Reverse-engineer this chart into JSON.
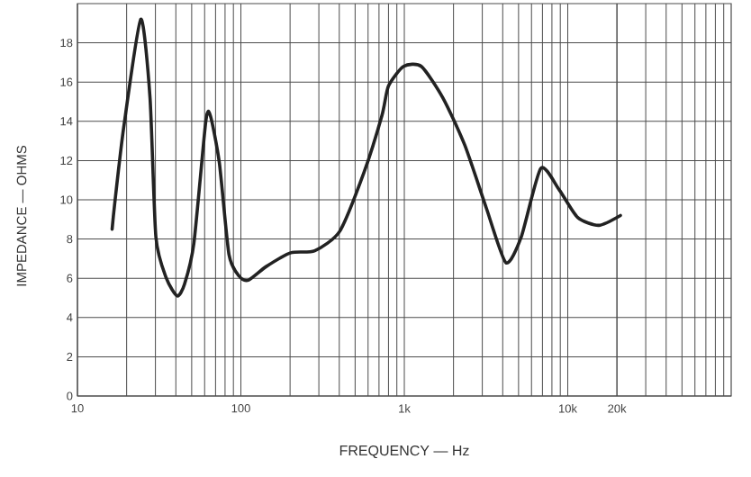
{
  "chart_data": {
    "type": "line",
    "xlabel": "FREQUENCY — Hz",
    "ylabel": "IMPEDANCE — OHMS",
    "log": "x",
    "grid": true,
    "marker": "none",
    "line_style": "solid",
    "xlim": [
      10,
      100000
    ],
    "ylim": [
      0,
      20
    ],
    "xticks": [
      10,
      100,
      {
        "value": 1000,
        "label": "1k"
      },
      {
        "value": 10000,
        "label": "10k"
      },
      {
        "value": 20000,
        "label": "20k"
      }
    ],
    "yticks": [
      0,
      2,
      4,
      6,
      8,
      10,
      12,
      14,
      16,
      18
    ],
    "series": [
      {
        "color": "#222222",
        "x": [
          16.3,
          16.9,
          19.2,
          24.4,
          27.8,
          30.2,
          35,
          40.8,
          45.2,
          51.6,
          61,
          65,
          73.8,
          84.6,
          97.8,
          111,
          143,
          202,
          283,
          403,
          567,
          730,
          800,
          990,
          1270,
          1720,
          2340,
          3170,
          4180,
          5190,
          6840,
          8880,
          11500,
          15500,
          21000
        ],
        "values": [
          8.5,
          9.8,
          13.7,
          19.2,
          15.2,
          8.1,
          6.0,
          5.1,
          5.7,
          7.8,
          14.0,
          14.3,
          11.9,
          7.2,
          6.1,
          5.9,
          6.6,
          7.3,
          7.4,
          8.4,
          11.4,
          14.3,
          15.8,
          16.8,
          16.8,
          15.2,
          12.8,
          9.6,
          6.8,
          8.1,
          11.6,
          10.5,
          9.1,
          8.7,
          9.2
        ]
      }
    ]
  }
}
